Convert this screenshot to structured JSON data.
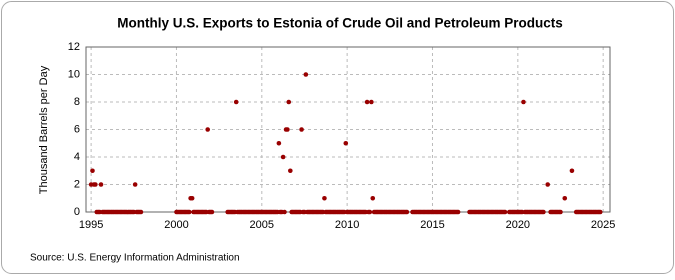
{
  "chart_data": {
    "type": "scatter",
    "title": "Monthly U.S. Exports to Estonia of Crude Oil and Petroleum Products",
    "y_label": "Thousand Barrels per Day",
    "source": "Source: U.S. Energy Information Administration",
    "color": "#990000",
    "grid": true,
    "xlim": [
      1994.7,
      2025.4
    ],
    "xticks": [
      1995,
      2000,
      2005,
      2010,
      2015,
      2020,
      2025
    ],
    "ylim": [
      0,
      12
    ],
    "yticks": [
      0,
      2,
      4,
      6,
      8,
      10,
      12
    ],
    "x": [
      1995,
      1995.08,
      1995.17,
      1995.25,
      1995.33,
      1995.42,
      1995.5,
      1995.58,
      1995.67,
      1995.75,
      1995.83,
      1995.92,
      1996,
      1996.08,
      1996.17,
      1996.25,
      1996.33,
      1996.42,
      1996.5,
      1996.58,
      1996.67,
      1996.75,
      1996.83,
      1996.92,
      1997,
      1997.08,
      1997.17,
      1997.25,
      1997.33,
      1997.42,
      1997.5,
      1997.58,
      1997.67,
      1997.75,
      1997.83,
      1997.92,
      2000,
      2000.08,
      2000.17,
      2000.25,
      2000.33,
      2000.42,
      2000.5,
      2000.58,
      2000.67,
      2000.75,
      2000.83,
      2000.92,
      2001,
      2001.08,
      2001.17,
      2001.25,
      2001.33,
      2001.42,
      2001.5,
      2001.58,
      2001.67,
      2001.75,
      2001.83,
      2001.92,
      2002,
      2002.08,
      2003,
      2003.08,
      2003.17,
      2003.25,
      2003.33,
      2003.42,
      2003.5,
      2003.58,
      2003.67,
      2003.75,
      2003.83,
      2003.92,
      2004,
      2004.08,
      2004.17,
      2004.25,
      2004.33,
      2004.42,
      2004.5,
      2004.58,
      2004.67,
      2004.75,
      2004.83,
      2004.92,
      2005,
      2005.08,
      2005.17,
      2005.25,
      2005.33,
      2005.42,
      2005.5,
      2005.58,
      2005.67,
      2005.75,
      2005.83,
      2005.92,
      2006,
      2006.08,
      2006.17,
      2006.25,
      2006.33,
      2006.42,
      2006.5,
      2006.58,
      2006.67,
      2006.75,
      2006.83,
      2006.92,
      2007,
      2007.08,
      2007.17,
      2007.25,
      2007.33,
      2007.42,
      2007.5,
      2007.58,
      2007.67,
      2007.75,
      2007.83,
      2007.92,
      2008,
      2008.08,
      2008.17,
      2008.25,
      2008.33,
      2008.42,
      2008.5,
      2008.58,
      2008.67,
      2008.75,
      2008.83,
      2008.92,
      2009,
      2009.08,
      2009.17,
      2009.25,
      2009.33,
      2009.42,
      2009.5,
      2009.58,
      2009.67,
      2009.75,
      2009.83,
      2009.92,
      2010,
      2010.08,
      2010.17,
      2010.25,
      2010.33,
      2010.42,
      2010.5,
      2010.58,
      2010.67,
      2010.75,
      2010.83,
      2010.92,
      2011,
      2011.08,
      2011.17,
      2011.25,
      2011.33,
      2011.42,
      2011.5,
      2011.58,
      2011.67,
      2011.75,
      2011.83,
      2011.92,
      2012,
      2012.08,
      2012.17,
      2012.25,
      2012.33,
      2012.42,
      2012.5,
      2012.58,
      2012.67,
      2012.75,
      2012.83,
      2012.92,
      2013,
      2013.08,
      2013.17,
      2013.25,
      2013.33,
      2013.42,
      2013.5,
      2013.83,
      2013.92,
      2014,
      2014.08,
      2014.17,
      2014.25,
      2014.33,
      2014.42,
      2014.5,
      2014.58,
      2014.67,
      2014.75,
      2014.83,
      2014.92,
      2015,
      2015.08,
      2015.17,
      2015.25,
      2015.33,
      2015.42,
      2015.5,
      2015.58,
      2015.67,
      2015.75,
      2015.83,
      2015.92,
      2016,
      2016.08,
      2016.17,
      2016.25,
      2016.33,
      2016.42,
      2016.5,
      2017.17,
      2017.25,
      2017.33,
      2017.42,
      2017.5,
      2017.58,
      2017.67,
      2017.75,
      2017.83,
      2017.92,
      2018,
      2018.08,
      2018.17,
      2018.25,
      2018.33,
      2018.42,
      2018.5,
      2018.58,
      2018.67,
      2018.75,
      2018.83,
      2018.92,
      2019,
      2019.08,
      2019.17,
      2019.25,
      2019.5,
      2019.58,
      2019.67,
      2019.75,
      2019.83,
      2019.92,
      2020,
      2020.08,
      2020.17,
      2020.25,
      2020.33,
      2020.42,
      2020.5,
      2020.58,
      2020.67,
      2020.75,
      2020.83,
      2020.92,
      2021,
      2021.08,
      2021.17,
      2021.25,
      2021.33,
      2021.42,
      2021.5,
      2021.75,
      2021.92,
      2022,
      2022.08,
      2022.17,
      2022.25,
      2022.33,
      2022.42,
      2022.5,
      2022.75,
      2023.17,
      2023.42,
      2023.5,
      2023.58,
      2023.67,
      2023.75,
      2023.83,
      2023.92,
      2024,
      2024.08,
      2024.17,
      2024.25,
      2024.33,
      2024.42,
      2024.5,
      2024.58,
      2024.67,
      2024.75,
      2024.83
    ],
    "values": [
      2,
      3,
      2,
      2,
      0,
      0,
      0,
      2,
      0,
      0,
      0,
      0,
      0,
      0,
      0,
      0,
      0,
      0,
      0,
      0,
      0,
      0,
      0,
      0,
      0,
      0,
      0,
      0,
      0,
      0,
      0,
      2,
      0,
      0,
      0,
      0,
      0,
      0,
      0,
      0,
      0,
      0,
      0,
      0,
      0,
      0,
      1,
      1,
      0,
      0,
      0,
      0,
      0,
      0,
      0,
      0,
      0,
      0,
      6,
      0,
      0,
      0,
      0,
      0,
      0,
      0,
      0,
      0,
      8,
      0,
      0,
      0,
      0,
      0,
      0,
      0,
      0,
      0,
      0,
      0,
      0,
      0,
      0,
      0,
      0,
      0,
      0,
      0,
      0,
      0,
      0,
      0,
      0,
      0,
      0,
      0,
      0,
      0,
      5,
      0,
      0,
      4,
      0,
      6,
      6,
      8,
      3,
      0,
      0,
      0,
      0,
      0,
      0,
      0,
      6,
      0,
      0,
      10,
      0,
      0,
      0,
      0,
      0,
      0,
      0,
      0,
      0,
      0,
      0,
      0,
      1,
      0,
      0,
      0,
      0,
      0,
      0,
      0,
      0,
      0,
      0,
      0,
      0,
      0,
      0,
      5,
      0,
      0,
      0,
      0,
      0,
      0,
      0,
      0,
      0,
      0,
      0,
      0,
      0,
      0,
      8,
      0,
      0,
      8,
      1,
      0,
      0,
      0,
      0,
      0,
      0,
      0,
      0,
      0,
      0,
      0,
      0,
      0,
      0,
      0,
      0,
      0,
      0,
      0,
      0,
      0,
      0,
      0,
      0,
      0,
      0,
      0,
      0,
      0,
      0,
      0,
      0,
      0,
      0,
      0,
      0,
      0,
      0,
      0,
      0,
      0,
      0,
      0,
      0,
      0,
      0,
      0,
      0,
      0,
      0,
      0,
      0,
      0,
      0,
      0,
      0,
      0,
      0,
      0,
      0,
      0,
      0,
      0,
      0,
      0,
      0,
      0,
      0,
      0,
      0,
      0,
      0,
      0,
      0,
      0,
      0,
      0,
      0,
      0,
      0,
      0,
      0,
      0,
      0,
      0,
      0,
      0,
      0,
      0,
      0,
      0,
      0,
      0,
      8,
      0,
      0,
      0,
      0,
      0,
      0,
      0,
      0,
      0,
      0,
      0,
      0,
      0,
      0,
      2,
      0,
      0,
      0,
      0,
      0,
      0,
      0,
      0,
      1,
      3,
      0,
      0,
      0,
      0,
      0,
      0,
      0,
      0,
      0,
      0,
      0,
      0,
      0,
      0,
      0,
      0,
      0,
      0
    ]
  }
}
